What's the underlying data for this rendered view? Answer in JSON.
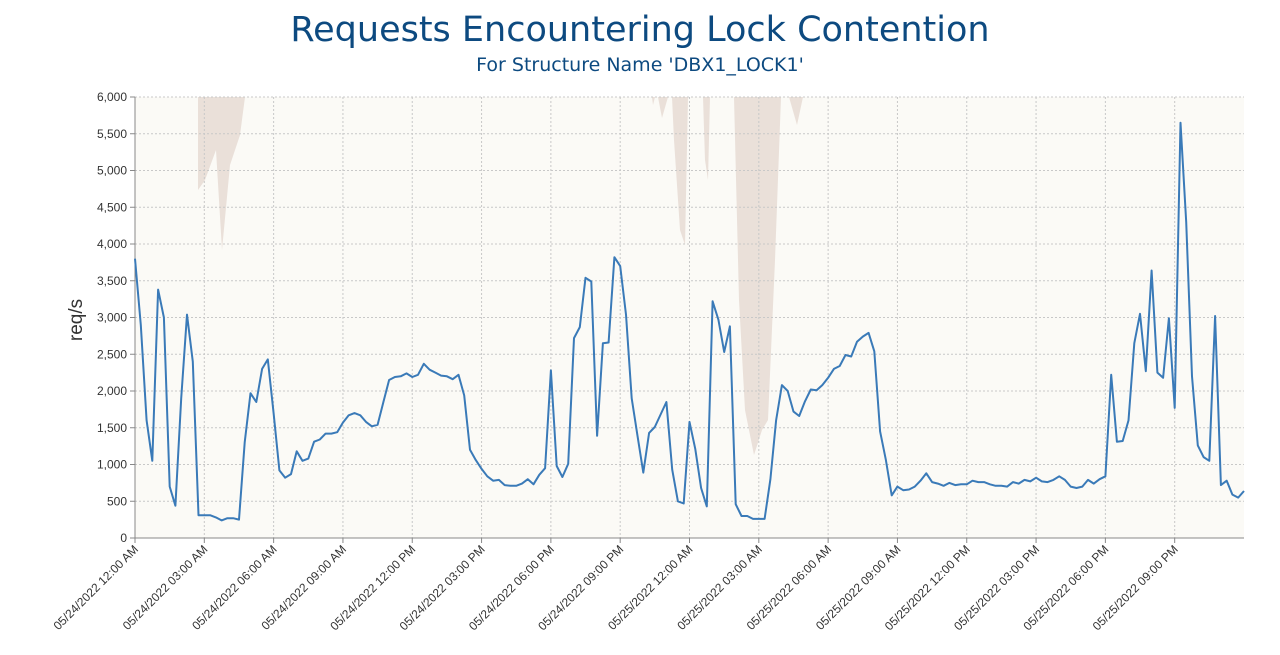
{
  "chart_data": {
    "type": "line",
    "title": "Requests Encountering Lock Contention",
    "subtitle": "For Structure Name 'DBX1_LOCK1'",
    "xlabel": "",
    "ylabel": "req/s",
    "ylim": [
      0,
      6000
    ],
    "y_ticks": [
      0,
      500,
      1000,
      1500,
      2000,
      2500,
      3000,
      3500,
      4000,
      4500,
      5000,
      5500,
      6000
    ],
    "y_tick_labels": [
      "0",
      "500",
      "1,000",
      "1,500",
      "2,000",
      "2,500",
      "3,000",
      "3,500",
      "4,000",
      "4,500",
      "5,000",
      "5,500",
      "6,000"
    ],
    "x_range_hours": [
      0,
      48
    ],
    "x_ticks_hours": [
      0,
      3,
      6,
      9,
      12,
      15,
      18,
      21,
      24,
      27,
      30,
      33,
      36,
      39,
      42,
      45
    ],
    "x_tick_labels": [
      "05/24/2022 12:00 AM",
      "05/24/2022 03:00 AM",
      "05/24/2022 06:00 AM",
      "05/24/2022 09:00 AM",
      "05/24/2022 12:00 PM",
      "05/24/2022 03:00 PM",
      "05/24/2022 06:00 PM",
      "05/24/2022 09:00 PM",
      "05/25/2022 12:00 AM",
      "05/25/2022 03:00 AM",
      "05/25/2022 06:00 AM",
      "05/25/2022 09:00 AM",
      "05/25/2022 12:00 PM",
      "05/25/2022 03:00 PM",
      "05/25/2022 06:00 PM",
      "05/25/2022 09:00 PM"
    ],
    "grid": true,
    "line_color": "#3a7ab8",
    "band_color": "#e6dbd4",
    "background_color": "#fbfaf6",
    "series": [
      {
        "x_hours": [
          0,
          0.25,
          0.5,
          0.75,
          1,
          1.25,
          1.5,
          1.75,
          2,
          2.25,
          2.5,
          2.75,
          3,
          3.25,
          3.5,
          3.75,
          4,
          4.25,
          4.5,
          4.75,
          5,
          5.25,
          5.5,
          5.75,
          6,
          6.25,
          6.5,
          6.75,
          7,
          7.25,
          7.5,
          7.75,
          8,
          8.25,
          8.5,
          8.75,
          9,
          9.25,
          9.5,
          9.75,
          10,
          10.25,
          10.5,
          10.75,
          11,
          11.25,
          11.5,
          11.75,
          12,
          12.25,
          12.5,
          12.75,
          13,
          13.25,
          13.5,
          13.75,
          14,
          14.25,
          14.5,
          14.75,
          15,
          15.25,
          15.5,
          15.75,
          16,
          16.25,
          16.5,
          16.75,
          17,
          17.25,
          17.5,
          17.75,
          18,
          18.25,
          18.5,
          18.75,
          19,
          19.25,
          19.5,
          19.75,
          20,
          20.25,
          20.5,
          20.75,
          21,
          21.25,
          21.5,
          21.75,
          22,
          22.25,
          22.5,
          22.75,
          23,
          23.25,
          23.5,
          23.75,
          24,
          24.25,
          24.5,
          24.75,
          25,
          25.25,
          25.5,
          25.75,
          26,
          26.25,
          26.5,
          26.75,
          27,
          27.25,
          27.5,
          27.75,
          28,
          28.25,
          28.5,
          28.75,
          29,
          29.25,
          29.5,
          29.75,
          30,
          30.25,
          30.5,
          30.75,
          31,
          31.25,
          31.5,
          31.75,
          32,
          32.25,
          32.5,
          32.75,
          33,
          33.25,
          33.5,
          33.75,
          34,
          34.25,
          34.5,
          34.75,
          35,
          35.25,
          35.5,
          35.75,
          36,
          36.25,
          36.5,
          36.75,
          37,
          37.25,
          37.5,
          37.75,
          38,
          38.25,
          38.5,
          38.75,
          39,
          39.25,
          39.5,
          39.75,
          40,
          40.25,
          40.5,
          40.75,
          41,
          41.25,
          41.5,
          41.75,
          42,
          42.25,
          42.5,
          42.75,
          43,
          43.25,
          43.5,
          43.75,
          44,
          44.25,
          44.5,
          44.75,
          45,
          45.25,
          45.5,
          45.75,
          46,
          46.25,
          46.5,
          46.75,
          47,
          47.25,
          47.5,
          47.75,
          48
        ],
        "values": [
          3800,
          2900,
          1600,
          1050,
          3380,
          3000,
          700,
          440,
          1900,
          3040,
          2400,
          310,
          310,
          310,
          280,
          240,
          270,
          270,
          250,
          1300,
          1970,
          1850,
          2300,
          2430,
          1700,
          920,
          820,
          870,
          1180,
          1050,
          1080,
          1310,
          1340,
          1420,
          1420,
          1440,
          1570,
          1670,
          1700,
          1670,
          1580,
          1520,
          1540,
          1850,
          2150,
          2190,
          2200,
          2240,
          2190,
          2220,
          2370,
          2290,
          2250,
          2210,
          2200,
          2160,
          2220,
          1940,
          1200,
          1060,
          940,
          840,
          780,
          790,
          720,
          710,
          710,
          740,
          800,
          730,
          860,
          950,
          2280,
          980,
          830,
          1010,
          2720,
          2870,
          3540,
          3490,
          1390,
          2650,
          2660,
          3820,
          3700,
          3040,
          1900,
          1390,
          890,
          1430,
          1510,
          1680,
          1850,
          930,
          500,
          470,
          1580,
          1210,
          680,
          430,
          3220,
          2970,
          2530,
          2880,
          460,
          300,
          300,
          260,
          260,
          260,
          800,
          1600,
          2080,
          2000,
          1720,
          1660,
          1860,
          2020,
          2010,
          2080,
          2180,
          2300,
          2340,
          2490,
          2470,
          2670,
          2740,
          2790,
          2540,
          1450,
          1060,
          580,
          700,
          650,
          660,
          700,
          780,
          880,
          760,
          740,
          710,
          750,
          720,
          730,
          730,
          780,
          760,
          760,
          730,
          710,
          710,
          700,
          760,
          740,
          790,
          770,
          820,
          770,
          760,
          790,
          840,
          790,
          700,
          680,
          700,
          790,
          740,
          800,
          840,
          2220,
          1310,
          1320,
          1600,
          2650,
          3050,
          2270,
          3640,
          2250,
          2180,
          2990,
          1770,
          5650,
          4300,
          2200,
          1260,
          1100,
          1050,
          3020,
          720,
          780,
          590,
          550,
          640
        ]
      }
    ]
  }
}
